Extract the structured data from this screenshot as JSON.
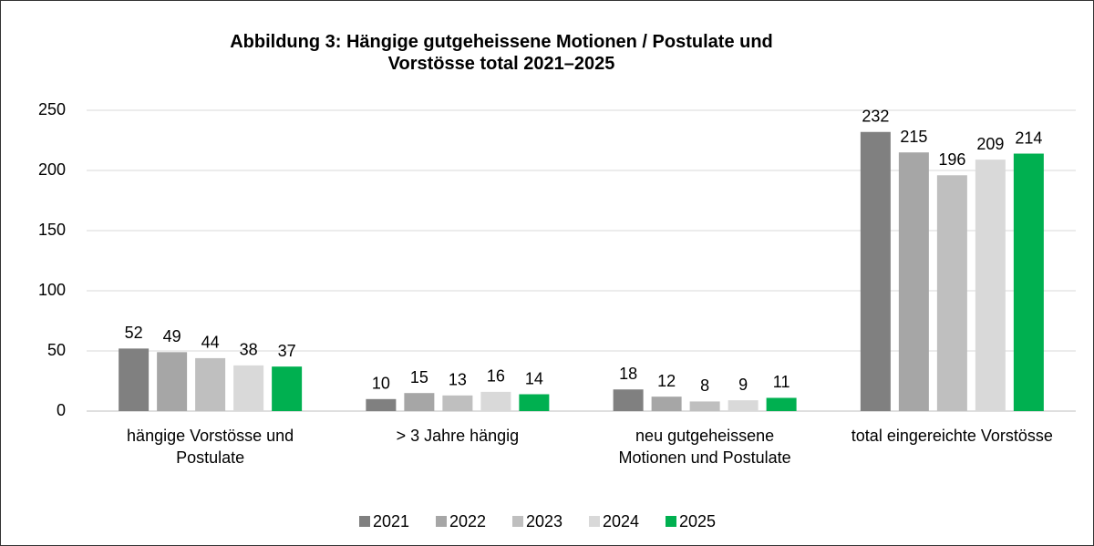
{
  "chart_data": {
    "type": "bar",
    "title": "Abbildung 3: Hängige gutgeheissene Motionen / Postulate und Vorstösse total 2021–2025",
    "categories": [
      "hängige Vorstösse und Postulate",
      "> 3 Jahre hängig",
      "neu gutgeheissene Motionen und Postulate",
      "total eingereichte Vorstösse"
    ],
    "series": [
      {
        "name": "2021",
        "color": "#808080",
        "values": [
          52,
          10,
          18,
          232
        ]
      },
      {
        "name": "2022",
        "color": "#a6a6a6",
        "values": [
          49,
          15,
          12,
          215
        ]
      },
      {
        "name": "2023",
        "color": "#bfbfbf",
        "values": [
          44,
          13,
          8,
          196
        ]
      },
      {
        "name": "2024",
        "color": "#d9d9d9",
        "values": [
          38,
          16,
          9,
          209
        ]
      },
      {
        "name": "2025",
        "color": "#00b050",
        "values": [
          37,
          14,
          11,
          214
        ]
      }
    ],
    "ylim": [
      0,
      250
    ],
    "yticks": [
      0,
      50,
      100,
      150,
      200,
      250
    ],
    "grid": true,
    "legend": "bottom"
  }
}
